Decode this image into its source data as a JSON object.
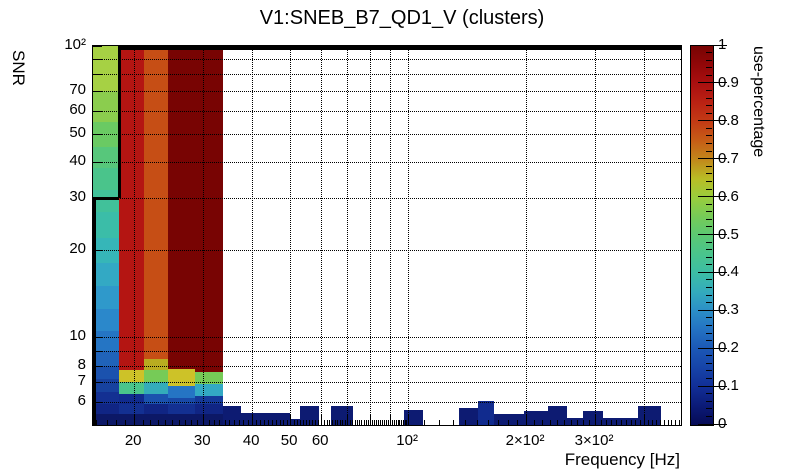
{
  "title": "V1:SNEB_B7_QD1_V (clusters)",
  "axis_titles": {
    "x": "Frequency [Hz]",
    "y": "SNR",
    "z": "use-percentage"
  },
  "chart_data": {
    "type": "heatmap",
    "title": "V1:SNEB_B7_QD1_V (clusters)",
    "xlabel": "Frequency [Hz]",
    "ylabel": "SNR",
    "zlabel": "use-percentage",
    "xscale": "log",
    "yscale": "log",
    "xlim": [
      15.7,
      497
    ],
    "ylim": [
      5,
      100
    ],
    "zlim": [
      0,
      1
    ],
    "grid": {
      "style": "dotted",
      "x_values": [
        20,
        30,
        40,
        50,
        60,
        70,
        80,
        90,
        100,
        200,
        300,
        400
      ],
      "y_values": [
        6,
        7,
        8,
        9,
        10,
        20,
        30,
        40,
        50,
        60,
        70,
        80,
        90
      ]
    },
    "x_ticks": [
      {
        "v": 20,
        "label": "20"
      },
      {
        "v": 30,
        "label": "30"
      },
      {
        "v": 40,
        "label": "40"
      },
      {
        "v": 50,
        "label": "50"
      },
      {
        "v": 60,
        "label": "60"
      },
      {
        "v": 100,
        "label": "10²"
      },
      {
        "v": 200,
        "label": "2×10²"
      },
      {
        "v": 300,
        "label": "3×10²"
      }
    ],
    "x_long_ticks": [
      20,
      30,
      40,
      50,
      60,
      70,
      80,
      90,
      100,
      200,
      300,
      400
    ],
    "y_ticks": [
      {
        "v": 6,
        "label": "6"
      },
      {
        "v": 7,
        "label": "7"
      },
      {
        "v": 8,
        "label": "8"
      },
      {
        "v": 10,
        "label": "10"
      },
      {
        "v": 20,
        "label": "20"
      },
      {
        "v": 30,
        "label": "30"
      },
      {
        "v": 40,
        "label": "40"
      },
      {
        "v": 50,
        "label": "50"
      },
      {
        "v": 60,
        "label": "60"
      },
      {
        "v": 70,
        "label": "70"
      },
      {
        "v": 100,
        "label": "10²"
      }
    ],
    "y_long_ticks": [
      6,
      7,
      8,
      9,
      10,
      20,
      30,
      40,
      50,
      60,
      70,
      80,
      90,
      100
    ],
    "colorbar": {
      "ticks": [
        {
          "v": 0.0,
          "label": "0"
        },
        {
          "v": 0.1,
          "label": "0.1"
        },
        {
          "v": 0.2,
          "label": "0.2"
        },
        {
          "v": 0.3,
          "label": "0.3"
        },
        {
          "v": 0.4,
          "label": "0.4"
        },
        {
          "v": 0.5,
          "label": "0.5"
        },
        {
          "v": 0.6,
          "label": "0.6"
        },
        {
          "v": 0.7,
          "label": "0.7"
        },
        {
          "v": 0.8,
          "label": "0.8"
        },
        {
          "v": 0.9,
          "label": "0.9"
        },
        {
          "v": 1.0,
          "label": "1"
        }
      ],
      "palette_stops": [
        {
          "pos": 0.0,
          "color": "#060b55"
        },
        {
          "pos": 0.05,
          "color": "#0b1a77"
        },
        {
          "pos": 0.1,
          "color": "#112e96"
        },
        {
          "pos": 0.15,
          "color": "#1643a8"
        },
        {
          "pos": 0.2,
          "color": "#1b57b5"
        },
        {
          "pos": 0.25,
          "color": "#2371c2"
        },
        {
          "pos": 0.3,
          "color": "#2b8ec7"
        },
        {
          "pos": 0.35,
          "color": "#33aabd"
        },
        {
          "pos": 0.4,
          "color": "#3cbda5"
        },
        {
          "pos": 0.45,
          "color": "#49c48d"
        },
        {
          "pos": 0.5,
          "color": "#5bc873"
        },
        {
          "pos": 0.55,
          "color": "#76cb57"
        },
        {
          "pos": 0.6,
          "color": "#99cd3d"
        },
        {
          "pos": 0.65,
          "color": "#b9bd25"
        },
        {
          "pos": 0.7,
          "color": "#c2881b"
        },
        {
          "pos": 0.75,
          "color": "#c65d16"
        },
        {
          "pos": 0.8,
          "color": "#c33b15"
        },
        {
          "pos": 0.85,
          "color": "#ba2213"
        },
        {
          "pos": 0.9,
          "color": "#aa1010"
        },
        {
          "pos": 0.95,
          "color": "#920708"
        },
        {
          "pos": 1.0,
          "color": "#780403"
        }
      ]
    },
    "columns": [
      {
        "f": [
          15.7,
          18.3
        ],
        "cells": [
          {
            "snr": [
              70,
              100
            ],
            "value": 0.6,
            "color": "#a6d144"
          },
          {
            "snr": [
              55,
              70
            ],
            "value": 0.56,
            "color": "#8bcd4e"
          },
          {
            "snr": [
              45,
              55
            ],
            "value": 0.52,
            "color": "#6aca63"
          },
          {
            "snr": [
              38,
              45
            ],
            "value": 0.49,
            "color": "#57c77b"
          },
          {
            "snr": [
              32,
              38
            ],
            "value": 0.46,
            "color": "#4ac48b"
          },
          {
            "snr": [
              27,
              32
            ],
            "value": 0.44,
            "color": "#41c19a"
          },
          {
            "snr": [
              22,
              27
            ],
            "value": 0.42,
            "color": "#3bbda8"
          },
          {
            "snr": [
              18,
              22
            ],
            "value": 0.4,
            "color": "#36b6b8"
          },
          {
            "snr": [
              15,
              18
            ],
            "value": 0.37,
            "color": "#33a9c4"
          },
          {
            "snr": [
              12.5,
              15
            ],
            "value": 0.34,
            "color": "#2f99cb"
          },
          {
            "snr": [
              10.5,
              12.5
            ],
            "value": 0.31,
            "color": "#2b88cb"
          },
          {
            "snr": [
              9,
              10.5
            ],
            "value": 0.28,
            "color": "#2575c4"
          },
          {
            "snr": [
              8,
              9
            ],
            "value": 0.25,
            "color": "#2063b9"
          },
          {
            "snr": [
              7.2,
              8
            ],
            "value": 0.22,
            "color": "#1b52ae"
          },
          {
            "snr": [
              6.5,
              7.2
            ],
            "value": 0.19,
            "color": "#17429f"
          },
          {
            "snr": [
              5.9,
              6.5
            ],
            "value": 0.15,
            "color": "#133092"
          },
          {
            "snr": [
              5.45,
              5.9
            ],
            "value": 0.12,
            "color": "#102584"
          },
          {
            "snr": [
              5,
              5.45
            ],
            "value": 0.08,
            "color": "#0c1866"
          }
        ]
      },
      {
        "f": [
          18.3,
          21.2
        ],
        "cells": [
          {
            "snr": [
              7.7,
              100
            ],
            "value": 0.87,
            "color": "#b41512"
          },
          {
            "snr": [
              7.0,
              7.7
            ],
            "value": 0.63,
            "color": "#cdc228"
          },
          {
            "snr": [
              6.4,
              7.0
            ],
            "value": 0.46,
            "color": "#4ac48b"
          },
          {
            "snr": [
              5.9,
              6.4
            ],
            "value": 0.13,
            "color": "#112b8e"
          },
          {
            "snr": [
              5.45,
              5.9
            ],
            "value": 0.15,
            "color": "#133092"
          },
          {
            "snr": [
              5,
              5.45
            ],
            "value": 0.08,
            "color": "#0c1866"
          }
        ]
      },
      {
        "f": [
          21.2,
          24.4
        ],
        "cells": [
          {
            "snr": [
              8.4,
              100
            ],
            "value": 0.77,
            "color": "#c64e15"
          },
          {
            "snr": [
              7.7,
              8.4
            ],
            "value": 0.66,
            "color": "#b9ac20"
          },
          {
            "snr": [
              7.0,
              7.7
            ],
            "value": 0.55,
            "color": "#76cb57"
          },
          {
            "snr": [
              6.4,
              7.0
            ],
            "value": 0.36,
            "color": "#34acba"
          },
          {
            "snr": [
              5.9,
              6.4
            ],
            "value": 0.22,
            "color": "#1b52ae"
          },
          {
            "snr": [
              5.45,
              5.9
            ],
            "value": 0.12,
            "color": "#102584"
          },
          {
            "snr": [
              5,
              5.45
            ],
            "value": 0.08,
            "color": "#0c1866"
          }
        ]
      },
      {
        "f": [
          24.4,
          28.6
        ],
        "cells": [
          {
            "snr": [
              7.8,
              100
            ],
            "value": 1.0,
            "color": "#780403"
          },
          {
            "snr": [
              6.8,
              7.8
            ],
            "value": 0.63,
            "color": "#cdc228"
          },
          {
            "snr": [
              6.2,
              6.8
            ],
            "value": 0.28,
            "color": "#2575c4"
          },
          {
            "snr": [
              5.9,
              6.2
            ],
            "value": 0.2,
            "color": "#194aa8"
          },
          {
            "snr": [
              5.45,
              5.9
            ],
            "value": 0.15,
            "color": "#133092"
          },
          {
            "snr": [
              5,
              5.45
            ],
            "value": 0.08,
            "color": "#0c1866"
          }
        ]
      },
      {
        "f": [
          28.6,
          33.7
        ],
        "cells": [
          {
            "snr": [
              7.6,
              100
            ],
            "value": 1.0,
            "color": "#780403"
          },
          {
            "snr": [
              6.9,
              7.6
            ],
            "value": 0.55,
            "color": "#76cb57"
          },
          {
            "snr": [
              6.3,
              6.9
            ],
            "value": 0.37,
            "color": "#33a9c4"
          },
          {
            "snr": [
              5.9,
              6.3
            ],
            "value": 0.17,
            "color": "#153a9a"
          },
          {
            "snr": [
              5.45,
              5.9
            ],
            "value": 0.12,
            "color": "#102584"
          },
          {
            "snr": [
              5,
              5.45
            ],
            "value": 0.08,
            "color": "#0c1866"
          }
        ]
      }
    ],
    "bottom_blocks": [
      {
        "f": [
          33.7,
          37.5
        ],
        "snr": [
          5,
          5.8
        ],
        "value": 0.08,
        "color": "#0d1b72"
      },
      {
        "f": [
          37.5,
          50.0
        ],
        "snr": [
          5,
          5.5
        ],
        "value": 0.07,
        "color": "#0d1b72"
      },
      {
        "f": [
          50.0,
          53.0
        ],
        "snr": [
          5,
          5.25
        ],
        "value": 0.06,
        "color": "#0d1b72"
      },
      {
        "f": [
          53.0,
          59.2
        ],
        "snr": [
          5,
          5.8
        ],
        "value": 0.08,
        "color": "#0d1b72"
      },
      {
        "f": [
          63.6,
          72.4
        ],
        "snr": [
          5,
          5.8
        ],
        "value": 0.08,
        "color": "#0d1b72"
      },
      {
        "f": [
          97.7,
          108.9
        ],
        "snr": [
          5,
          5.65
        ],
        "value": 0.07,
        "color": "#0d1b72"
      },
      {
        "f": [
          134.6,
          150.5
        ],
        "snr": [
          5,
          5.7
        ],
        "value": 0.08,
        "color": "#0d1b72"
      },
      {
        "f": [
          150.5,
          165.5
        ],
        "snr": [
          5,
          6.05
        ],
        "value": 0.1,
        "color": "#112b8e"
      },
      {
        "f": [
          165.5,
          197.2
        ],
        "snr": [
          5,
          5.45
        ],
        "value": 0.06,
        "color": "#0d1b72"
      },
      {
        "f": [
          197.2,
          227
        ],
        "snr": [
          5,
          5.6
        ],
        "value": 0.07,
        "color": "#0d1b72"
      },
      {
        "f": [
          227,
          255
        ],
        "snr": [
          5,
          5.8
        ],
        "value": 0.08,
        "color": "#0d1b72"
      },
      {
        "f": [
          255,
          280
        ],
        "snr": [
          5,
          5.3
        ],
        "value": 0.06,
        "color": "#0d1b72"
      },
      {
        "f": [
          280,
          315
        ],
        "snr": [
          5,
          5.6
        ],
        "value": 0.07,
        "color": "#0d1b72"
      },
      {
        "f": [
          315,
          385
        ],
        "snr": [
          5,
          5.3
        ],
        "value": 0.06,
        "color": "#0d1b72"
      },
      {
        "f": [
          385,
          441
        ],
        "snr": [
          5,
          5.8
        ],
        "value": 0.08,
        "color": "#0d1b72"
      }
    ],
    "selection_outline": {
      "color": "#000000",
      "points": [
        [
          15.7,
          5
        ],
        [
          15.7,
          30
        ],
        [
          18.3,
          30
        ],
        [
          18.3,
          100
        ],
        [
          497,
          100
        ]
      ]
    }
  }
}
